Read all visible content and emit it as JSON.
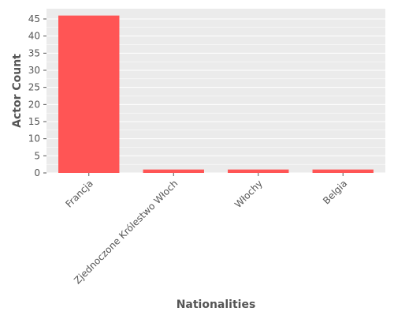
{
  "chart_data": {
    "type": "bar",
    "categories": [
      "Francja",
      "Zjednoczone Królestwo Włoch",
      "Włochy",
      "Belgia"
    ],
    "values": [
      46,
      1,
      1,
      1
    ],
    "xlabel": "Nationalities",
    "ylabel": "Actor Count",
    "ylim": [
      0,
      48
    ],
    "yticks": [
      0,
      5,
      10,
      15,
      20,
      25,
      30,
      35,
      40,
      45
    ],
    "grid": true,
    "bar_color": "#ff5555",
    "panel_background": "#ebebeb",
    "grid_color": "#ffffff",
    "tick_label_color": "#555555",
    "axis_label_color": "#555555"
  }
}
